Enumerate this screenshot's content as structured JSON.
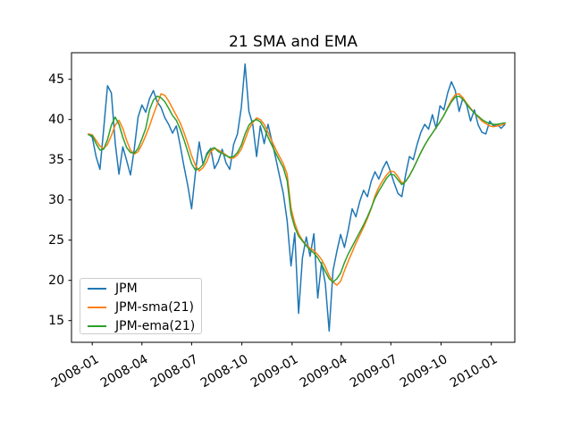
{
  "figure": {
    "background": "#ffffff",
    "text_color": "#000000",
    "frame_color": "#000000"
  },
  "chart_data": {
    "type": "line",
    "title": "21 SMA and EMA",
    "grid": false,
    "legend": {
      "location": "lower-left"
    },
    "x_axis": {
      "unit": "days since 2008-01-01",
      "tick_days": [
        0,
        91,
        182,
        274,
        366,
        456,
        547,
        639,
        731
      ],
      "tick_labels": [
        "2008-01",
        "2008-04",
        "2008-07",
        "2008-10",
        "2009-01",
        "2009-04",
        "2009-07",
        "2009-10",
        "2010-01"
      ],
      "label_rotation_deg": 30
    },
    "y_axis": {
      "ticks": [
        15,
        20,
        25,
        30,
        35,
        40,
        45
      ]
    },
    "xlim_days": [
      -38,
      774
    ],
    "ylim": [
      12.3,
      48.3
    ],
    "x_start_day": -7,
    "x_step_days": 7,
    "series": [
      {
        "name": "JPM",
        "color": "#1f77b4",
        "values": [
          38.2,
          37.8,
          35.4,
          33.8,
          38.8,
          44.2,
          43.3,
          37.1,
          33.2,
          36.6,
          34.9,
          33.1,
          36.3,
          40.3,
          41.8,
          40.9,
          42.6,
          43.6,
          42.2,
          41.5,
          40.2,
          39.4,
          38.3,
          39.2,
          36.8,
          34.2,
          31.8,
          28.9,
          33.4,
          37.2,
          34.4,
          35.8,
          36.4,
          33.9,
          34.8,
          36.3,
          34.6,
          33.8,
          36.9,
          38.2,
          41.5,
          46.9,
          41.0,
          39.4,
          35.4,
          39.2,
          37.0,
          39.4,
          37.3,
          35.2,
          33.0,
          30.8,
          27.4,
          21.8,
          25.9,
          15.9,
          22.8,
          25.4,
          23.0,
          25.8,
          17.8,
          22.2,
          19.6,
          13.7,
          21.2,
          23.6,
          25.7,
          24.1,
          26.3,
          28.9,
          27.9,
          29.8,
          31.2,
          30.4,
          32.3,
          33.5,
          32.6,
          33.9,
          34.8,
          33.6,
          32.1,
          30.8,
          30.4,
          33.1,
          35.4,
          35.0,
          36.9,
          38.4,
          39.4,
          38.8,
          40.6,
          38.9,
          41.7,
          41.2,
          43.3,
          44.7,
          43.6,
          41.0,
          42.7,
          41.8,
          39.8,
          41.2,
          39.3,
          38.4,
          38.2,
          39.8,
          39.2,
          39.4,
          38.9,
          39.4
        ]
      },
      {
        "name": "JPM-sma(21)",
        "color": "#ff7f0e",
        "values": [
          38.2,
          38.1,
          37.4,
          36.7,
          36.4,
          36.9,
          38.0,
          39.3,
          39.9,
          38.9,
          37.4,
          36.2,
          35.7,
          36.0,
          36.9,
          38.0,
          39.2,
          40.6,
          41.9,
          43.2,
          43.0,
          42.3,
          41.4,
          40.5,
          39.6,
          38.4,
          37.0,
          35.5,
          34.3,
          33.6,
          34.0,
          34.8,
          36.0,
          36.4,
          36.2,
          35.9,
          35.6,
          35.2,
          35.2,
          35.6,
          36.3,
          37.5,
          38.8,
          39.6,
          40.2,
          40.0,
          39.4,
          38.4,
          37.3,
          36.3,
          35.4,
          34.5,
          33.2,
          29.0,
          27.1,
          25.8,
          25.0,
          24.4,
          24.0,
          23.7,
          23.2,
          22.6,
          21.7,
          20.6,
          19.8,
          19.4,
          19.9,
          21.2,
          22.4,
          23.5,
          24.6,
          25.6,
          26.6,
          27.7,
          28.9,
          30.5,
          31.6,
          32.4,
          33.1,
          33.6,
          33.5,
          32.9,
          32.1,
          32.3,
          33.0,
          33.9,
          34.9,
          35.9,
          36.8,
          37.6,
          38.3,
          39.0,
          39.7,
          40.5,
          41.5,
          42.4,
          43.1,
          43.2,
          42.7,
          42.0,
          41.4,
          40.8,
          40.3,
          39.8,
          39.5,
          39.2,
          39.1,
          39.2,
          39.3,
          39.5
        ]
      },
      {
        "name": "JPM-ema(21)",
        "color": "#2ca02c",
        "values": [
          38.1,
          38.0,
          37.0,
          36.2,
          36.3,
          37.5,
          39.3,
          40.3,
          39.4,
          37.8,
          36.5,
          35.9,
          35.8,
          36.4,
          37.6,
          38.9,
          41.2,
          42.4,
          42.9,
          42.7,
          42.2,
          41.4,
          40.5,
          39.9,
          38.8,
          37.5,
          36.0,
          34.5,
          33.7,
          33.9,
          34.4,
          35.6,
          36.3,
          36.5,
          36.0,
          35.8,
          35.5,
          35.3,
          35.4,
          35.9,
          36.8,
          38.2,
          39.3,
          39.8,
          40.0,
          39.7,
          38.9,
          37.8,
          36.8,
          35.8,
          34.9,
          34.0,
          32.4,
          28.3,
          26.6,
          25.5,
          24.9,
          24.3,
          23.8,
          23.4,
          22.8,
          22.0,
          21.1,
          20.2,
          19.8,
          20.2,
          20.9,
          22.2,
          23.3,
          24.2,
          25.1,
          26.0,
          26.9,
          27.9,
          29.0,
          30.2,
          31.1,
          31.9,
          32.7,
          33.2,
          33.1,
          32.5,
          31.9,
          32.3,
          33.0,
          33.9,
          34.9,
          35.9,
          36.8,
          37.6,
          38.3,
          39.0,
          39.7,
          40.5,
          41.4,
          42.2,
          42.8,
          42.9,
          42.5,
          41.9,
          41.3,
          40.8,
          40.4,
          40.0,
          39.7,
          39.5,
          39.4,
          39.4,
          39.5,
          39.6
        ]
      }
    ]
  }
}
